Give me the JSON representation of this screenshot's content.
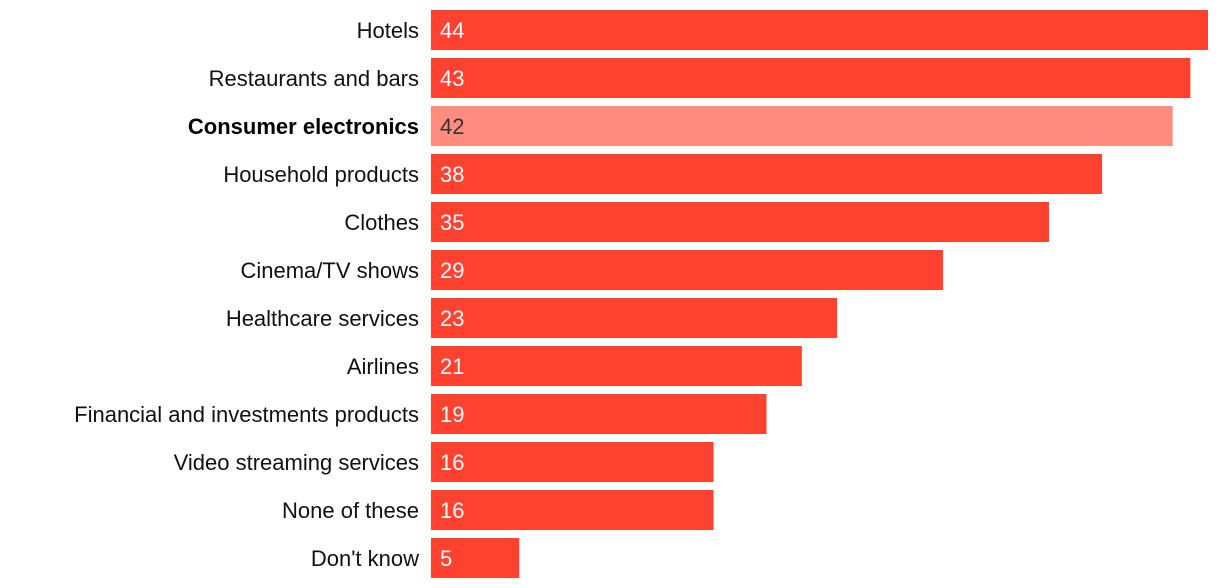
{
  "chart_data": {
    "type": "bar",
    "orientation": "horizontal",
    "title": "",
    "xlabel": "",
    "ylabel": "",
    "xlim": [
      0,
      44
    ],
    "grid": false,
    "categories": [
      "Hotels",
      "Restaurants and bars",
      "Consumer electronics",
      "Household products",
      "Clothes",
      "Cinema/TV shows",
      "Healthcare services",
      "Airlines",
      "Financial and investments products",
      "Video streaming services",
      "None of these",
      "Don't know"
    ],
    "values": [
      44,
      43,
      42,
      38,
      35,
      29,
      23,
      21,
      19,
      16,
      16,
      5
    ],
    "highlight_index": 2,
    "colors": {
      "bar": "#ff4130",
      "highlight_bar": "#ff8c7e",
      "label": "#111111",
      "value_text": "#ffffff",
      "highlight_value_text": "#333333"
    }
  }
}
